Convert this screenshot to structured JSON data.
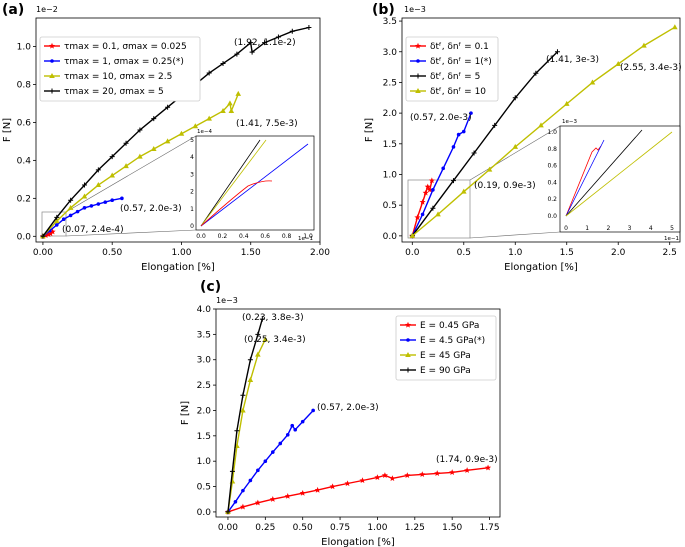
{
  "chart_data": [
    {
      "panel": "(a)",
      "type": "line",
      "xlabel": "Elongation [%]",
      "ylabel": "F [N]",
      "y_exponent": "1e−2",
      "xlim": [
        -0.05,
        2.0
      ],
      "ylim": [
        -0.03,
        1.15
      ],
      "xticks": [
        "0.00",
        "0.50",
        "1.00",
        "1.50",
        "2.00"
      ],
      "yticks": [
        "0.0",
        "0.2",
        "0.4",
        "0.6",
        "0.8",
        "1.0"
      ],
      "grid": false,
      "legend_position": "upper-left",
      "series": [
        {
          "name": "τmax = 0.1, σmax = 0.025",
          "color": "#ff0000",
          "marker": "star",
          "points": [
            [
              0,
              0
            ],
            [
              0.02,
              0.005
            ],
            [
              0.04,
              0.01
            ],
            [
              0.055,
              0.014
            ],
            [
              0.07,
              0.024
            ]
          ]
        },
        {
          "name": "τmax = 1, σmax = 0.25(*)",
          "color": "#0000ff",
          "marker": "dot",
          "points": [
            [
              0,
              0
            ],
            [
              0.05,
              0.03
            ],
            [
              0.1,
              0.06
            ],
            [
              0.15,
              0.09
            ],
            [
              0.2,
              0.11
            ],
            [
              0.25,
              0.13
            ],
            [
              0.3,
              0.15
            ],
            [
              0.35,
              0.16
            ],
            [
              0.4,
              0.17
            ],
            [
              0.45,
              0.18
            ],
            [
              0.5,
              0.19
            ],
            [
              0.57,
              0.2
            ]
          ]
        },
        {
          "name": "τmax = 10, σmax = 2.5",
          "color": "#bfbf00",
          "marker": "triangle",
          "points": [
            [
              0,
              0
            ],
            [
              0.1,
              0.08
            ],
            [
              0.2,
              0.15
            ],
            [
              0.3,
              0.21
            ],
            [
              0.4,
              0.27
            ],
            [
              0.5,
              0.32
            ],
            [
              0.6,
              0.37
            ],
            [
              0.7,
              0.42
            ],
            [
              0.8,
              0.46
            ],
            [
              0.9,
              0.5
            ],
            [
              1.0,
              0.54
            ],
            [
              1.1,
              0.58
            ],
            [
              1.2,
              0.62
            ],
            [
              1.3,
              0.66
            ],
            [
              1.35,
              0.7
            ],
            [
              1.36,
              0.66
            ],
            [
              1.41,
              0.75
            ]
          ]
        },
        {
          "name": "τmax = 20, σmax = 5",
          "color": "#000000",
          "marker": "plus",
          "points": [
            [
              0,
              0
            ],
            [
              0.1,
              0.1
            ],
            [
              0.2,
              0.19
            ],
            [
              0.3,
              0.27
            ],
            [
              0.4,
              0.35
            ],
            [
              0.5,
              0.42
            ],
            [
              0.6,
              0.49
            ],
            [
              0.7,
              0.56
            ],
            [
              0.8,
              0.62
            ],
            [
              0.9,
              0.68
            ],
            [
              1.0,
              0.74
            ],
            [
              1.1,
              0.8
            ],
            [
              1.2,
              0.86
            ],
            [
              1.3,
              0.91
            ],
            [
              1.4,
              0.96
            ],
            [
              1.5,
              1.02
            ],
            [
              1.51,
              0.97
            ],
            [
              1.6,
              1.02
            ],
            [
              1.7,
              1.05
            ],
            [
              1.8,
              1.08
            ],
            [
              1.92,
              1.1
            ]
          ]
        }
      ],
      "annotations": [
        {
          "text": "(1.92, 1.1e-2)",
          "x": 1.92,
          "y": 1.1
        },
        {
          "text": "(1.41, 7.5e-3)",
          "x": 1.41,
          "y": 0.75
        },
        {
          "text": "(0.57, 2.0e-3)",
          "x": 0.57,
          "y": 0.2
        },
        {
          "text": "(0.07, 2.4e-4)",
          "x": 0.07,
          "y": 0.024
        }
      ],
      "inset": {
        "x_exponent": "1e−1",
        "y_exponent": "1e−4",
        "xticks": [
          "0.0",
          "0.2",
          "0.4",
          "0.6",
          "0.8",
          "1.0"
        ],
        "yticks": [
          "0",
          "1",
          "2",
          "3",
          "4",
          "5"
        ]
      }
    },
    {
      "panel": "(b)",
      "type": "line",
      "xlabel": "Elongation [%]",
      "ylabel": "F [N]",
      "y_exponent": "1e−3",
      "xlim": [
        -0.1,
        2.6
      ],
      "ylim": [
        -0.1,
        3.55
      ],
      "xticks": [
        "0.0",
        "0.5",
        "1.0",
        "1.5",
        "2.0",
        "2.5"
      ],
      "yticks": [
        "0.0",
        "0.5",
        "1.0",
        "1.5",
        "2.0",
        "2.5",
        "3.0",
        "3.5"
      ],
      "grid": false,
      "legend_position": "upper-left",
      "series": [
        {
          "name": "δtᶠ, δnᶠ = 0.1",
          "color": "#ff0000",
          "marker": "star",
          "points": [
            [
              0,
              0
            ],
            [
              0.05,
              0.3
            ],
            [
              0.1,
              0.55
            ],
            [
              0.13,
              0.7
            ],
            [
              0.15,
              0.8
            ],
            [
              0.17,
              0.75
            ],
            [
              0.19,
              0.9
            ]
          ]
        },
        {
          "name": "δtᶠ, δnᶠ = 1(*)",
          "color": "#0000ff",
          "marker": "dot",
          "points": [
            [
              0,
              0
            ],
            [
              0.1,
              0.35
            ],
            [
              0.2,
              0.75
            ],
            [
              0.3,
              1.1
            ],
            [
              0.4,
              1.45
            ],
            [
              0.45,
              1.65
            ],
            [
              0.5,
              1.7
            ],
            [
              0.57,
              2.0
            ]
          ]
        },
        {
          "name": "δtᶠ, δnᶠ = 5",
          "color": "#000000",
          "marker": "plus",
          "points": [
            [
              0,
              0
            ],
            [
              0.2,
              0.45
            ],
            [
              0.4,
              0.9
            ],
            [
              0.6,
              1.35
            ],
            [
              0.8,
              1.8
            ],
            [
              1.0,
              2.25
            ],
            [
              1.2,
              2.65
            ],
            [
              1.41,
              3.0
            ]
          ]
        },
        {
          "name": "δtᶠ, δnᶠ = 10",
          "color": "#bfbf00",
          "marker": "triangle",
          "points": [
            [
              0,
              0
            ],
            [
              0.25,
              0.35
            ],
            [
              0.5,
              0.72
            ],
            [
              0.75,
              1.08
            ],
            [
              1.0,
              1.45
            ],
            [
              1.25,
              1.8
            ],
            [
              1.5,
              2.15
            ],
            [
              1.75,
              2.5
            ],
            [
              2.0,
              2.8
            ],
            [
              2.25,
              3.1
            ],
            [
              2.55,
              3.4
            ]
          ]
        }
      ],
      "annotations": [
        {
          "text": "(1.41, 3e-3)",
          "x": 1.41,
          "y": 3.0
        },
        {
          "text": "(2.55, 3.4e-3)",
          "x": 2.55,
          "y": 3.4
        },
        {
          "text": "(0.57, 2.0e-3)",
          "x": 0.57,
          "y": 2.0
        },
        {
          "text": "(0.19, 0.9e-3)",
          "x": 0.19,
          "y": 0.9
        }
      ],
      "inset": {
        "x_exponent": "1e−1",
        "y_exponent": "1e−3",
        "xticks": [
          "0",
          "1",
          "2",
          "3",
          "4",
          "5"
        ],
        "yticks": [
          "0.0",
          "0.2",
          "0.4",
          "0.6",
          "0.8",
          "1.0"
        ]
      }
    },
    {
      "panel": "(c)",
      "type": "line",
      "xlabel": "Elongation [%]",
      "ylabel": "F [N]",
      "y_exponent": "1e−3",
      "xlim": [
        -0.08,
        1.82
      ],
      "ylim": [
        -0.1,
        4.0
      ],
      "xticks": [
        "0.00",
        "0.25",
        "0.50",
        "0.75",
        "1.00",
        "1.25",
        "1.50",
        "1.75"
      ],
      "yticks": [
        "0.0",
        "0.5",
        "1.0",
        "1.5",
        "2.0",
        "2.5",
        "3.0",
        "3.5",
        "4.0"
      ],
      "grid": false,
      "legend_position": "upper-right",
      "series": [
        {
          "name": "E = 0.45 GPa",
          "color": "#ff0000",
          "marker": "star",
          "points": [
            [
              0,
              0
            ],
            [
              0.1,
              0.1
            ],
            [
              0.2,
              0.18
            ],
            [
              0.3,
              0.25
            ],
            [
              0.4,
              0.31
            ],
            [
              0.5,
              0.37
            ],
            [
              0.6,
              0.43
            ],
            [
              0.7,
              0.5
            ],
            [
              0.8,
              0.56
            ],
            [
              0.9,
              0.62
            ],
            [
              1.0,
              0.68
            ],
            [
              1.05,
              0.72
            ],
            [
              1.1,
              0.66
            ],
            [
              1.2,
              0.72
            ],
            [
              1.3,
              0.74
            ],
            [
              1.4,
              0.76
            ],
            [
              1.5,
              0.78
            ],
            [
              1.6,
              0.82
            ],
            [
              1.74,
              0.87
            ]
          ]
        },
        {
          "name": "E = 4.5 GPa(*)",
          "color": "#0000ff",
          "marker": "dot",
          "points": [
            [
              0,
              0
            ],
            [
              0.05,
              0.2
            ],
            [
              0.1,
              0.42
            ],
            [
              0.15,
              0.62
            ],
            [
              0.2,
              0.82
            ],
            [
              0.25,
              1.0
            ],
            [
              0.3,
              1.18
            ],
            [
              0.35,
              1.35
            ],
            [
              0.4,
              1.52
            ],
            [
              0.43,
              1.7
            ],
            [
              0.45,
              1.62
            ],
            [
              0.5,
              1.78
            ],
            [
              0.57,
              2.0
            ]
          ]
        },
        {
          "name": "E = 45 GPa",
          "color": "#bfbf00",
          "marker": "triangle",
          "points": [
            [
              0,
              0
            ],
            [
              0.03,
              0.6
            ],
            [
              0.06,
              1.3
            ],
            [
              0.1,
              2.0
            ],
            [
              0.15,
              2.6
            ],
            [
              0.2,
              3.1
            ],
            [
              0.25,
              3.4
            ]
          ]
        },
        {
          "name": "E = 90 GPa",
          "color": "#000000",
          "marker": "plus",
          "points": [
            [
              0,
              0
            ],
            [
              0.03,
              0.8
            ],
            [
              0.06,
              1.6
            ],
            [
              0.1,
              2.3
            ],
            [
              0.15,
              3.0
            ],
            [
              0.2,
              3.5
            ],
            [
              0.23,
              3.8
            ]
          ]
        }
      ],
      "annotations": [
        {
          "text": "(0.23, 3.8e-3)",
          "x": 0.23,
          "y": 3.8
        },
        {
          "text": "(0.25, 3.4e-3)",
          "x": 0.25,
          "y": 3.4
        },
        {
          "text": "(0.57, 2.0e-3)",
          "x": 0.57,
          "y": 2.0
        },
        {
          "text": "(1.74, 0.9e-3)",
          "x": 1.74,
          "y": 0.87
        }
      ]
    }
  ]
}
